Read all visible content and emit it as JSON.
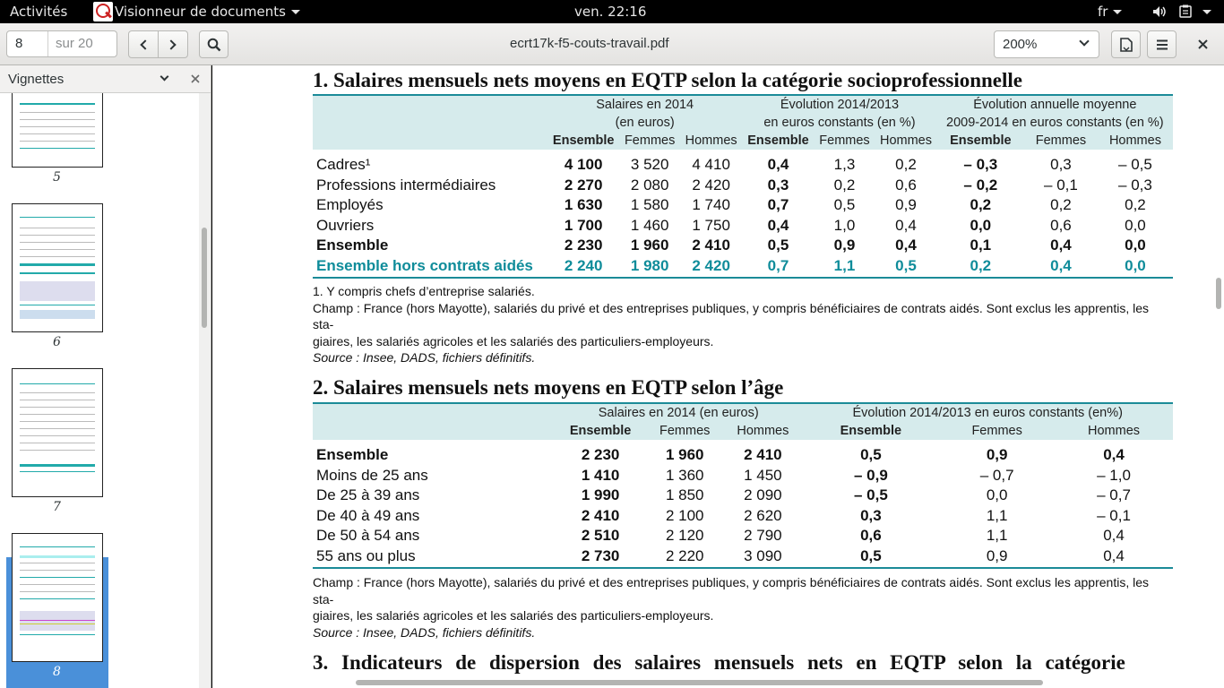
{
  "topbar": {
    "activities": "Activités",
    "app_name": "Visionneur de documents",
    "clock": "ven. 22:16",
    "lang": "fr"
  },
  "toolbar": {
    "page_current": "8",
    "page_total": "sur 20",
    "title": "ecrt17k-f5-couts-travail.pdf",
    "zoom": "200%"
  },
  "sidebar": {
    "header": "Vignettes",
    "pages": [
      "5",
      "6",
      "7",
      "8"
    ]
  },
  "doc": {
    "sec1": {
      "title": "1. Salaires mensuels nets moyens en EQTP selon la catégorie socioprofessionnelle",
      "groups": [
        "Salaires en 2014",
        "(en euros)",
        "Évolution 2014/2013",
        "en euros constants (en %)",
        "Évolution annuelle moyenne",
        "2009-2014 en euros constants (en %)"
      ],
      "cols": [
        "Ensemble",
        "Femmes",
        "Hommes",
        "Ensemble",
        "Femmes",
        "Hommes",
        "Ensemble",
        "Femmes",
        "Hommes"
      ],
      "rows": [
        {
          "label": "Cadres¹",
          "v": [
            "4 100",
            "3 520",
            "4 410",
            "0,4",
            "1,3",
            "0,2",
            "– 0,3",
            "0,3",
            "– 0,5"
          ]
        },
        {
          "label": "Professions intermédiaires",
          "v": [
            "2 270",
            "2 080",
            "2 420",
            "0,3",
            "0,2",
            "0,6",
            "– 0,2",
            "– 0,1",
            "– 0,3"
          ]
        },
        {
          "label": "Employés",
          "v": [
            "1 630",
            "1 580",
            "1 740",
            "0,7",
            "0,5",
            "0,9",
            "0,2",
            "0,2",
            "0,2"
          ]
        },
        {
          "label": "Ouvriers",
          "v": [
            "1 700",
            "1 460",
            "1 750",
            "0,4",
            "1,0",
            "0,4",
            "0,0",
            "0,6",
            "0,0"
          ]
        },
        {
          "label": "Ensemble",
          "v": [
            "2 230",
            "1 960",
            "2 410",
            "0,5",
            "0,9",
            "0,4",
            "0,1",
            "0,4",
            "0,0"
          ]
        },
        {
          "label": "Ensemble hors contrats aidés",
          "v": [
            "2 240",
            "1 980",
            "2 420",
            "0,7",
            "1,1",
            "0,5",
            "0,2",
            "0,4",
            "0,0"
          ]
        }
      ],
      "note1": "1. Y compris chefs d’entreprise salariés.",
      "champ_a": "Champ : France (hors Mayotte), salariés du privé et des entreprises publiques, y compris bénéficiaires de contrats aidés. Sont exclus les apprentis, les sta-",
      "champ_b": "giaires, les salariés agricoles et les salariés des particuliers-employeurs.",
      "source": "Source : Insee, DADS, fichiers définitifs."
    },
    "sec2": {
      "title": "2. Salaires mensuels nets moyens en EQTP selon l’âge",
      "groups": [
        "Salaires en 2014 (en euros)",
        "Évolution 2014/2013 en euros constants (en%)"
      ],
      "cols": [
        "Ensemble",
        "Femmes",
        "Hommes",
        "Ensemble",
        "Femmes",
        "Hommes"
      ],
      "rows": [
        {
          "label": "Ensemble",
          "v": [
            "2 230",
            "1 960",
            "2 410",
            "0,5",
            "0,9",
            "0,4"
          ]
        },
        {
          "label": "Moins de 25 ans",
          "v": [
            "1 410",
            "1 360",
            "1 450",
            "– 0,9",
            "– 0,7",
            "– 1,0"
          ]
        },
        {
          "label": "De 25 à 39 ans",
          "v": [
            "1 990",
            "1 850",
            "2 090",
            "– 0,5",
            "0,0",
            "– 0,7"
          ]
        },
        {
          "label": "De 40 à 49 ans",
          "v": [
            "2 410",
            "2 100",
            "2 620",
            "0,3",
            "1,1",
            "– 0,1"
          ]
        },
        {
          "label": "De 50 à 54 ans",
          "v": [
            "2 510",
            "2 120",
            "2 790",
            "0,6",
            "1,1",
            "0,4"
          ]
        },
        {
          "label": "55 ans ou plus",
          "v": [
            "2 730",
            "2 220",
            "3 090",
            "0,5",
            "0,9",
            "0,4"
          ]
        }
      ],
      "champ_a": "Champ : France (hors Mayotte), salariés du privé et des entreprises publiques, y compris bénéficiaires de contrats aidés. Sont exclus les apprentis, les sta-",
      "champ_b": "giaires, les salariés agricoles et les salariés des particuliers-employeurs.",
      "source": "Source : Insee, DADS, fichiers définitifs."
    },
    "sec3": {
      "title": "3. Indicateurs de dispersion des salaires mensuels nets en EQTP selon la catégorie"
    }
  }
}
